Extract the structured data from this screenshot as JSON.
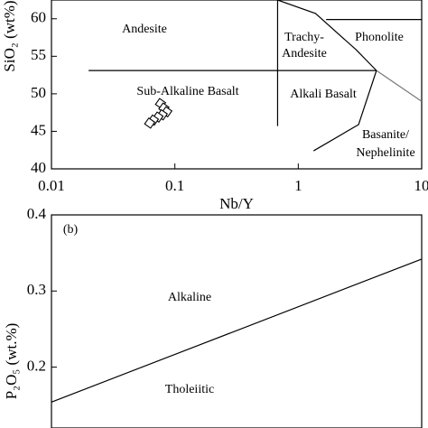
{
  "chart_data": [
    {
      "type": "scatter",
      "xlabel": "Nb/Y",
      "ylabel": "SiO₂ (wt%)",
      "xscale": "log",
      "xlim": [
        0.01,
        10
      ],
      "xticks": [
        0.01,
        0.1,
        1,
        10
      ],
      "ylim": [
        40,
        62.5
      ],
      "yticks": [
        40,
        45,
        50,
        55,
        60
      ],
      "series": [
        {
          "color": "#000000",
          "x": [
            0.0765,
            0.0815,
            0.086,
            0.079,
            0.073,
            0.067,
            0.0625
          ],
          "values": [
            48.7,
            48.1,
            47.6,
            47.2,
            46.9,
            46.5,
            46.1
          ]
        }
      ],
      "boundaries": [
        {
          "color": "#000000",
          "x": [
            0.02,
            4.3
          ],
          "y": [
            53.1,
            53.1
          ]
        },
        {
          "color": "#000000",
          "x": [
            0.68,
            0.68
          ],
          "y": [
            62.5,
            45.7
          ]
        },
        {
          "color": "#000000",
          "x": [
            0.68,
            1.38,
            2.93,
            4.3
          ],
          "y": [
            62.5,
            60.7,
            55.9,
            53.1
          ]
        },
        {
          "color": "#000000",
          "x": [
            1.68,
            10
          ],
          "y": [
            59.9,
            59.9
          ]
        },
        {
          "color": "#777777",
          "x": [
            4.3,
            10
          ],
          "y": [
            53.1,
            49.0
          ]
        },
        {
          "color": "#000000",
          "x": [
            4.3,
            3.08,
            1.33
          ],
          "y": [
            53.1,
            45.9,
            42.4
          ]
        }
      ],
      "annotations": [
        "Andesite",
        "Trachy-",
        "Andesite",
        "Phonolite",
        "Sub-Alkaline Basalt",
        "Alkali Basalt",
        "Basanite/",
        "Nephelinite"
      ]
    },
    {
      "type": "line",
      "ylabel": "P₂O₅ (wt.%)",
      "ylim": [
        0.12,
        0.4
      ],
      "yticks": [
        0.2,
        0.3,
        0.4
      ],
      "boundaries": [
        {
          "color": "#000000",
          "y": [
            0.154,
            0.342
          ]
        }
      ],
      "annotations": [
        "(b)",
        "Alkaline",
        "Tholeiitic"
      ]
    }
  ]
}
